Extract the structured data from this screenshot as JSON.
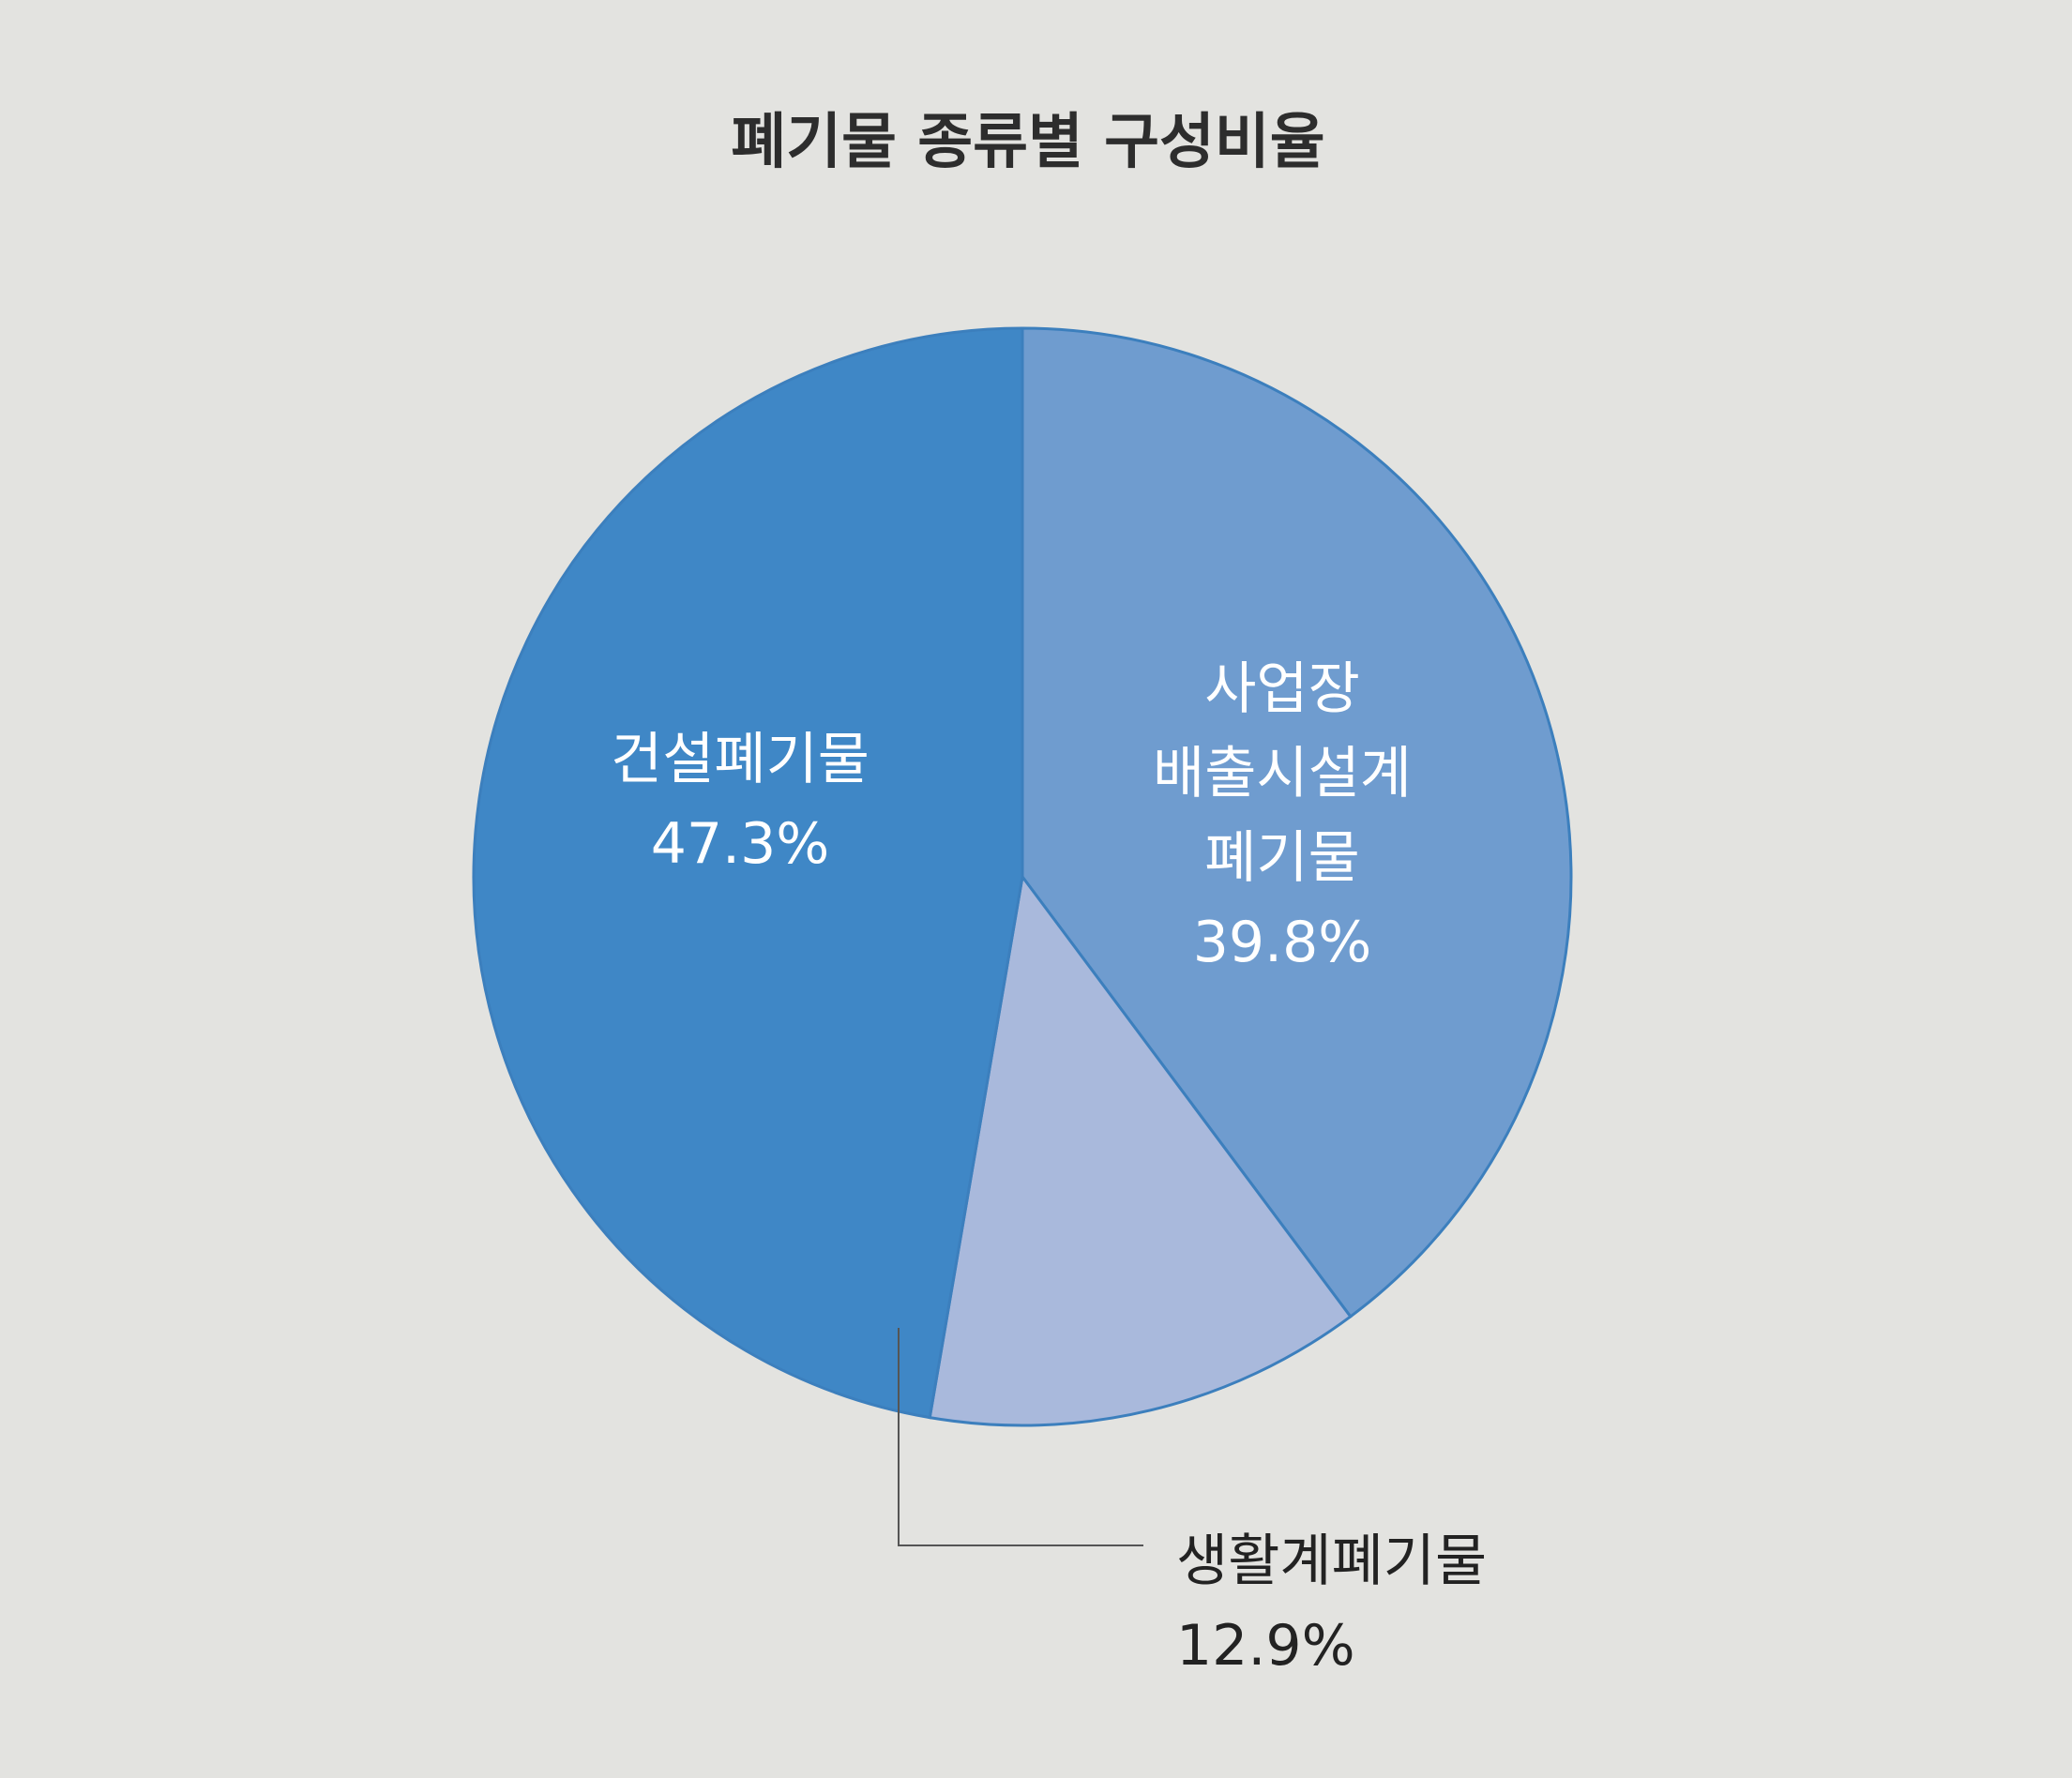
{
  "chart_data": {
    "type": "pie",
    "title": "폐기물 종류별 구성비율",
    "categories": [
      "사업장\n배출시설계\n폐기물",
      "생활계폐기물",
      "건설폐기물"
    ],
    "values": [
      39.8,
      12.9,
      47.3
    ],
    "value_labels": [
      "39.8%",
      "12.9%",
      "47.3%"
    ],
    "colors": [
      "#6f9ccf",
      "#a9b9dc",
      "#3f87c6"
    ]
  }
}
